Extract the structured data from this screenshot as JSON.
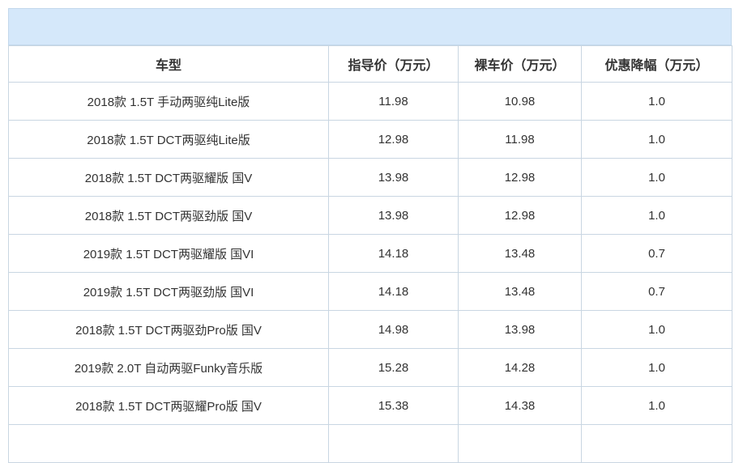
{
  "banner": {
    "title": ""
  },
  "table": {
    "headers": [
      "车型",
      "指导价（万元）",
      "裸车价（万元）",
      "优惠降幅（万元）"
    ],
    "rows": [
      [
        "2018款 1.5T 手动两驱纯Lite版",
        "11.98",
        "10.98",
        "1.0"
      ],
      [
        "2018款 1.5T DCT两驱纯Lite版",
        "12.98",
        "11.98",
        "1.0"
      ],
      [
        "2018款 1.5T DCT两驱耀版 国V",
        "13.98",
        "12.98",
        "1.0"
      ],
      [
        "2018款 1.5T DCT两驱劲版 国V",
        "13.98",
        "12.98",
        "1.0"
      ],
      [
        "2019款 1.5T DCT两驱耀版 国VI",
        "14.18",
        "13.48",
        "0.7"
      ],
      [
        "2019款 1.5T DCT两驱劲版 国VI",
        "14.18",
        "13.48",
        "0.7"
      ],
      [
        "2018款 1.5T DCT两驱劲Pro版 国V",
        "14.98",
        "13.98",
        "1.0"
      ],
      [
        "2019款 2.0T 自动两驱Funky音乐版",
        "15.28",
        "14.28",
        "1.0"
      ],
      [
        "2018款 1.5T DCT两驱耀Pro版 国V",
        "15.38",
        "14.38",
        "1.0"
      ]
    ]
  },
  "colors": {
    "banner_bg": "#d5e8fa",
    "banner_border": "#c2d8ec",
    "table_border": "#c9d6e2",
    "text": "#333333",
    "row_bg": "#ffffff"
  }
}
